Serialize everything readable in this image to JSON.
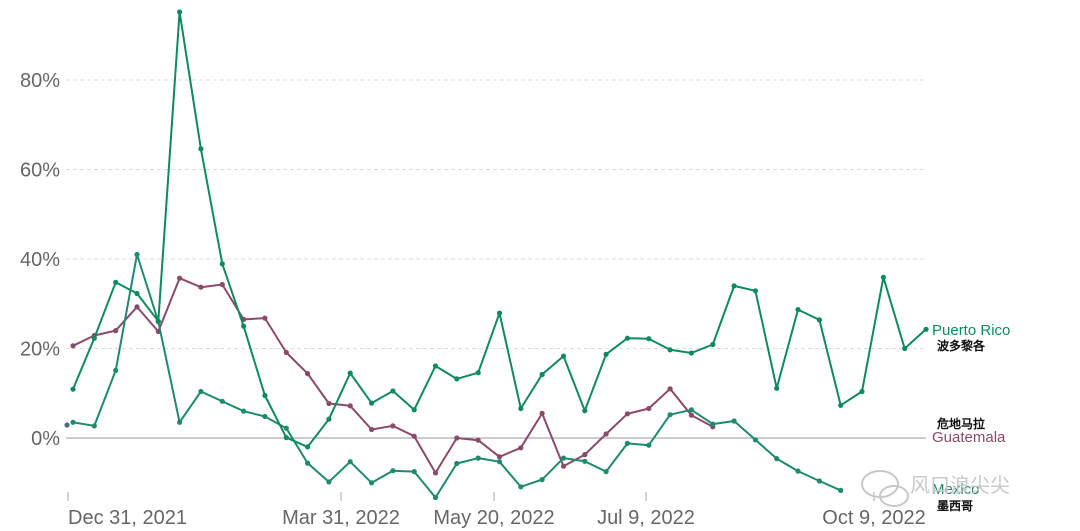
{
  "chart_data": {
    "type": "line",
    "x_ticks": [
      "Dec 31, 2021",
      "Mar 31, 2022",
      "May 20, 2022",
      "Jul 9, 2022",
      "Oct 9, 2022"
    ],
    "y_ticks": [
      "0%",
      "20%",
      "40%",
      "60%",
      "80%"
    ],
    "ylim": [
      -13,
      95
    ],
    "grid": "horizontal dashed",
    "series": [
      {
        "name": "Puerto Rico",
        "name_cn": "波多黎各",
        "color": "#0e8a5f",
        "values": [
          10.9,
          22.3,
          34.8,
          32.3,
          26.1,
          95.2,
          64.6,
          38.9,
          25.0,
          9.5,
          0.1,
          -2.0,
          4.2,
          14.5,
          7.8,
          10.5,
          6.3,
          16.1,
          13.2,
          14.6,
          27.9,
          6.6,
          14.2,
          18.3,
          6.1,
          18.7,
          22.3,
          22.2,
          19.7,
          19.0,
          20.9,
          34.0,
          32.9,
          11.1,
          28.7,
          26.4,
          7.3,
          10.4,
          35.9,
          20.0,
          24.3
        ]
      },
      {
        "name": "Guatemala",
        "name_cn": "危地马拉",
        "color": "#8b4a6b",
        "values": [
          20.6,
          22.9,
          24.0,
          29.3,
          23.8,
          35.7,
          33.7,
          34.3,
          26.5,
          26.8,
          19.1,
          14.4,
          7.7,
          7.2,
          1.9,
          2.7,
          0.4,
          -7.8,
          0.0,
          -0.5,
          -4.2,
          -2.2,
          5.5,
          -6.3,
          -3.7,
          0.9,
          5.4,
          6.6,
          11.0,
          5.1,
          2.5
        ]
      },
      {
        "name": "Mexico",
        "name_cn": "墨西哥",
        "color": "#1e8a6e",
        "values": [
          3.5,
          2.7,
          15.1,
          41.0,
          26.0,
          3.5,
          10.4,
          8.2,
          6.0,
          4.8,
          2.2,
          -5.6,
          -9.8,
          -5.3,
          -10.0,
          -7.3,
          -7.5,
          -13.3,
          -5.7,
          -4.5,
          -5.3,
          -10.9,
          -9.3,
          -4.5,
          -5.2,
          -7.5,
          -1.2,
          -1.6,
          5.2,
          6.3,
          3.1,
          3.8,
          -0.4,
          -4.6,
          -7.4,
          -9.6,
          -11.7
        ]
      }
    ]
  },
  "watermark": "风口浪尖尖"
}
